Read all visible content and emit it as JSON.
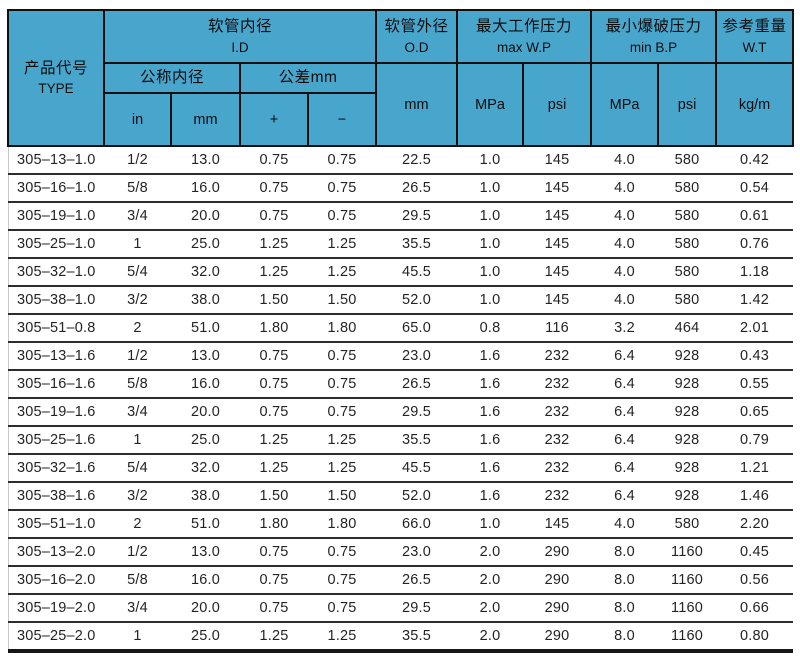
{
  "header": {
    "type_zh": "产品代号",
    "type_en": "TYPE",
    "id_zh": "软管内径",
    "id_en": "I.D",
    "nominal_id_zh": "公称内径",
    "tolerance_zh": "公差mm",
    "unit_in": "in",
    "unit_mm": "mm",
    "tol_plus": "+",
    "tol_minus": "−",
    "od_zh": "软管外径",
    "od_en": "O.D",
    "od_unit": "mm",
    "wp_zh": "最大工作压力",
    "wp_en": "max W.P",
    "bp_zh": "最小爆破压力",
    "bp_en": "min B.P",
    "wt_zh": "参考重量",
    "wt_en": "W.T",
    "unit_mpa": "MPa",
    "unit_psi": "psi",
    "wt_unit": "kg/m"
  },
  "colors": {
    "header_bg": "#48a6cd",
    "row_line": "#2d2d2d",
    "text": "#242424"
  },
  "table": {
    "rows": [
      {
        "type": "305–13–1.0",
        "in": "1/2",
        "mm": "13.0",
        "plus": "0.75",
        "minus": "0.75",
        "od": "22.5",
        "wp_mpa": "1.0",
        "wp_psi": "145",
        "bp_mpa": "4.0",
        "bp_psi": "580",
        "wt": "0.42"
      },
      {
        "type": "305–16–1.0",
        "in": "5/8",
        "mm": "16.0",
        "plus": "0.75",
        "minus": "0.75",
        "od": "26.5",
        "wp_mpa": "1.0",
        "wp_psi": "145",
        "bp_mpa": "4.0",
        "bp_psi": "580",
        "wt": "0.54"
      },
      {
        "type": "305–19–1.0",
        "in": "3/4",
        "mm": "20.0",
        "plus": "0.75",
        "minus": "0.75",
        "od": "29.5",
        "wp_mpa": "1.0",
        "wp_psi": "145",
        "bp_mpa": "4.0",
        "bp_psi": "580",
        "wt": "0.61"
      },
      {
        "type": "305–25–1.0",
        "in": "1",
        "mm": "25.0",
        "plus": "1.25",
        "minus": "1.25",
        "od": "35.5",
        "wp_mpa": "1.0",
        "wp_psi": "145",
        "bp_mpa": "4.0",
        "bp_psi": "580",
        "wt": "0.76"
      },
      {
        "type": "305–32–1.0",
        "in": "5/4",
        "mm": "32.0",
        "plus": "1.25",
        "minus": "1.25",
        "od": "45.5",
        "wp_mpa": "1.0",
        "wp_psi": "145",
        "bp_mpa": "4.0",
        "bp_psi": "580",
        "wt": "1.18"
      },
      {
        "type": "305–38–1.0",
        "in": "3/2",
        "mm": "38.0",
        "plus": "1.50",
        "minus": "1.50",
        "od": "52.0",
        "wp_mpa": "1.0",
        "wp_psi": "145",
        "bp_mpa": "4.0",
        "bp_psi": "580",
        "wt": "1.42"
      },
      {
        "type": "305–51–0.8",
        "in": "2",
        "mm": "51.0",
        "plus": "1.80",
        "minus": "1.80",
        "od": "65.0",
        "wp_mpa": "0.8",
        "wp_psi": "116",
        "bp_mpa": "3.2",
        "bp_psi": "464",
        "wt": "2.01"
      },
      {
        "type": "305–13–1.6",
        "in": "1/2",
        "mm": "13.0",
        "plus": "0.75",
        "minus": "0.75",
        "od": "23.0",
        "wp_mpa": "1.6",
        "wp_psi": "232",
        "bp_mpa": "6.4",
        "bp_psi": "928",
        "wt": "0.43"
      },
      {
        "type": "305–16–1.6",
        "in": "5/8",
        "mm": "16.0",
        "plus": "0.75",
        "minus": "0.75",
        "od": "26.5",
        "wp_mpa": "1.6",
        "wp_psi": "232",
        "bp_mpa": "6.4",
        "bp_psi": "928",
        "wt": "0.55"
      },
      {
        "type": "305–19–1.6",
        "in": "3/4",
        "mm": "20.0",
        "plus": "0.75",
        "minus": "0.75",
        "od": "29.5",
        "wp_mpa": "1.6",
        "wp_psi": "232",
        "bp_mpa": "6.4",
        "bp_psi": "928",
        "wt": "0.65"
      },
      {
        "type": "305–25–1.6",
        "in": "1",
        "mm": "25.0",
        "plus": "1.25",
        "minus": "1.25",
        "od": "35.5",
        "wp_mpa": "1.6",
        "wp_psi": "232",
        "bp_mpa": "6.4",
        "bp_psi": "928",
        "wt": "0.79"
      },
      {
        "type": "305–32–1.6",
        "in": "5/4",
        "mm": "32.0",
        "plus": "1.25",
        "minus": "1.25",
        "od": "45.5",
        "wp_mpa": "1.6",
        "wp_psi": "232",
        "bp_mpa": "6.4",
        "bp_psi": "928",
        "wt": "1.21"
      },
      {
        "type": "305–38–1.6",
        "in": "3/2",
        "mm": "38.0",
        "plus": "1.50",
        "minus": "1.50",
        "od": "52.0",
        "wp_mpa": "1.6",
        "wp_psi": "232",
        "bp_mpa": "6.4",
        "bp_psi": "928",
        "wt": "1.46"
      },
      {
        "type": "305–51–1.0",
        "in": "2",
        "mm": "51.0",
        "plus": "1.80",
        "minus": "1.80",
        "od": "66.0",
        "wp_mpa": "1.0",
        "wp_psi": "145",
        "bp_mpa": "4.0",
        "bp_psi": "580",
        "wt": "2.20"
      },
      {
        "type": "305–13–2.0",
        "in": "1/2",
        "mm": "13.0",
        "plus": "0.75",
        "minus": "0.75",
        "od": "23.0",
        "wp_mpa": "2.0",
        "wp_psi": "290",
        "bp_mpa": "8.0",
        "bp_psi": "1160",
        "wt": "0.45"
      },
      {
        "type": "305–16–2.0",
        "in": "5/8",
        "mm": "16.0",
        "plus": "0.75",
        "minus": "0.75",
        "od": "26.5",
        "wp_mpa": "2.0",
        "wp_psi": "290",
        "bp_mpa": "8.0",
        "bp_psi": "1160",
        "wt": "0.56"
      },
      {
        "type": "305–19–2.0",
        "in": "3/4",
        "mm": "20.0",
        "plus": "0.75",
        "minus": "0.75",
        "od": "29.5",
        "wp_mpa": "2.0",
        "wp_psi": "290",
        "bp_mpa": "8.0",
        "bp_psi": "1160",
        "wt": "0.66"
      },
      {
        "type": "305–25–2.0",
        "in": "1",
        "mm": "25.0",
        "plus": "1.25",
        "minus": "1.25",
        "od": "35.5",
        "wp_mpa": "2.0",
        "wp_psi": "290",
        "bp_mpa": "8.0",
        "bp_psi": "1160",
        "wt": "0.80"
      }
    ]
  }
}
